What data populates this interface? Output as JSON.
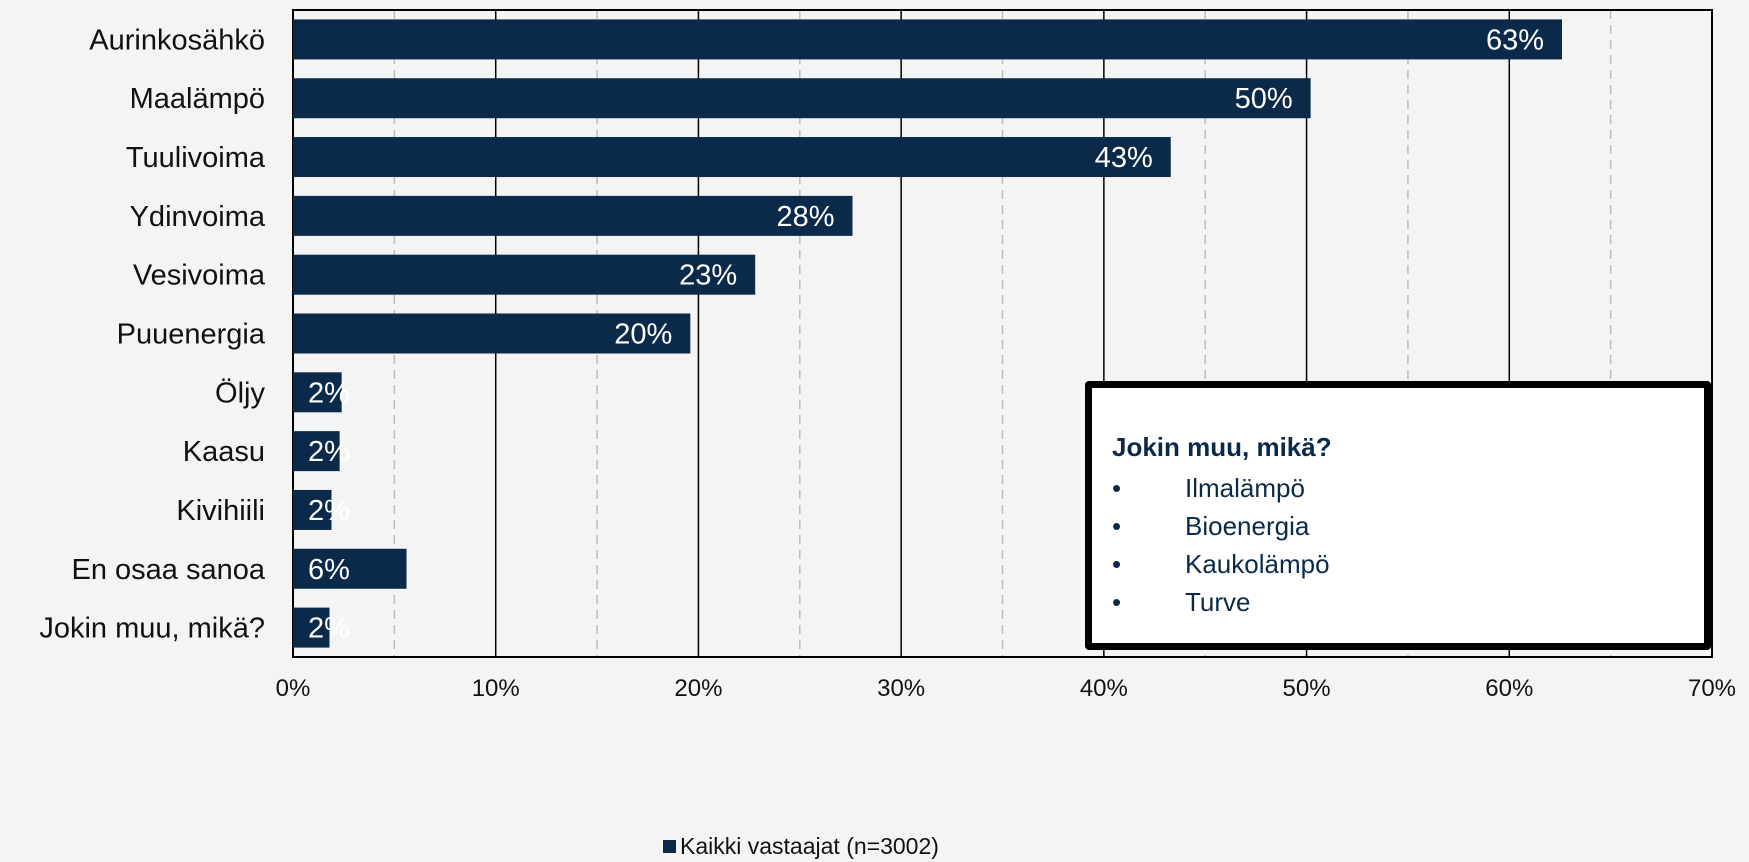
{
  "chart_data": {
    "type": "bar",
    "orientation": "horizontal",
    "categories": [
      "Aurinkosähkö",
      "Maalämpö",
      "Tuulivoima",
      "Ydinvoima",
      "Vesivoima",
      "Puuenergia",
      "Öljy",
      "Kaasu",
      "Kivihiili",
      "En osaa sanoa",
      "Jokin muu, mikä?"
    ],
    "values": [
      63,
      50,
      43,
      28,
      23,
      20,
      2,
      2,
      2,
      6,
      2
    ],
    "bar_values": [
      62.6,
      50.2,
      43.3,
      27.6,
      22.8,
      19.6,
      2.4,
      2.3,
      1.9,
      5.6,
      1.8
    ],
    "value_labels": [
      "63%",
      "50%",
      "43%",
      "28%",
      "23%",
      "20%",
      "2%",
      "2%",
      "2%",
      "6%",
      "2%"
    ],
    "series": [
      {
        "name": "Kaikki vastaajat (n=3002)"
      }
    ],
    "xlim": [
      0,
      70
    ],
    "x_ticks": [
      "0%",
      "10%",
      "20%",
      "30%",
      "40%",
      "50%",
      "60%",
      "70%"
    ],
    "grid": true,
    "legend_position": "bottom",
    "bar_color": "#0b2a4a",
    "title": "",
    "xlabel": "",
    "ylabel": ""
  },
  "note_box": {
    "title": "Jokin muu, mikä?",
    "bullet": "•",
    "items": [
      "Ilmalämpö",
      "Bioenergia",
      "Kaukolämpö",
      "Turve"
    ]
  },
  "legend": {
    "label": "Kaikki vastaajat (n=3002)",
    "color": "#0b2a4a"
  }
}
